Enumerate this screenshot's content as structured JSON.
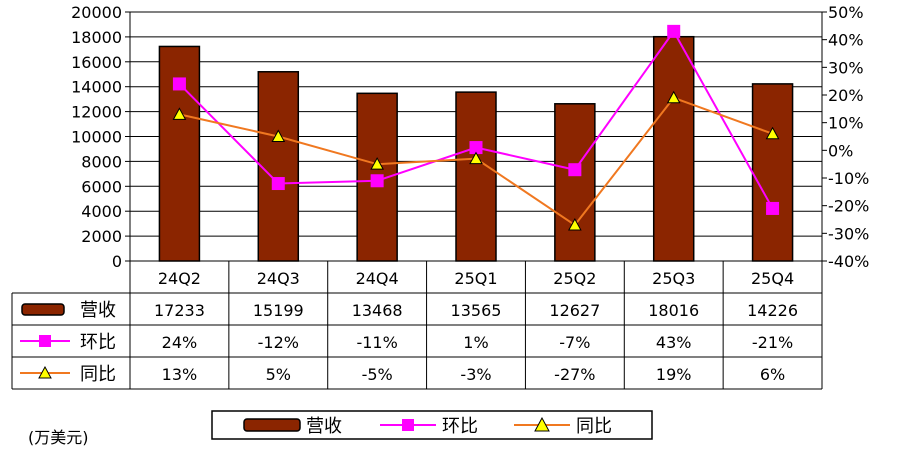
{
  "chart_data": {
    "type": "bar",
    "categories": [
      "24Q2",
      "24Q3",
      "24Q4",
      "25Q1",
      "25Q2",
      "25Q3",
      "25Q4"
    ],
    "series": [
      {
        "name": "营收",
        "kind": "bar",
        "axis": "left",
        "color": "#8B2500",
        "values": [
          17233,
          15199,
          13468,
          13565,
          12627,
          18016,
          14226
        ],
        "labels": [
          "17233",
          "15199",
          "13468",
          "13565",
          "12627",
          "18016",
          "14226"
        ]
      },
      {
        "name": "环比",
        "kind": "line",
        "axis": "right",
        "color": "#FF00FF",
        "marker": "square",
        "values": [
          24,
          -12,
          -11,
          1,
          -7,
          43,
          -21
        ],
        "labels": [
          "24%",
          "-12%",
          "-11%",
          "1%",
          "-7%",
          "43%",
          "-21%"
        ]
      },
      {
        "name": "同比",
        "kind": "line",
        "axis": "right",
        "color": "#F07820",
        "marker": "triangle",
        "marker_fill": "#FFFF00",
        "values": [
          13,
          5,
          -5,
          -3,
          -27,
          19,
          6
        ],
        "labels": [
          "13%",
          "5%",
          "-5%",
          "-3%",
          "-27%",
          "19%",
          "6%"
        ]
      }
    ],
    "left_axis": {
      "min": 0,
      "max": 20000,
      "step": 2000,
      "ticks": [
        "0",
        "2000",
        "4000",
        "6000",
        "8000",
        "10000",
        "12000",
        "14000",
        "16000",
        "18000",
        "20000"
      ]
    },
    "right_axis": {
      "min": -40,
      "max": 50,
      "step": 10,
      "ticks": [
        "-40%",
        "-30%",
        "-20%",
        "-10%",
        "0%",
        "10%",
        "20%",
        "30%",
        "40%",
        "50%"
      ]
    },
    "grid": true,
    "data_table": true,
    "legend_position": "bottom",
    "unit_note": "(万美元)"
  }
}
